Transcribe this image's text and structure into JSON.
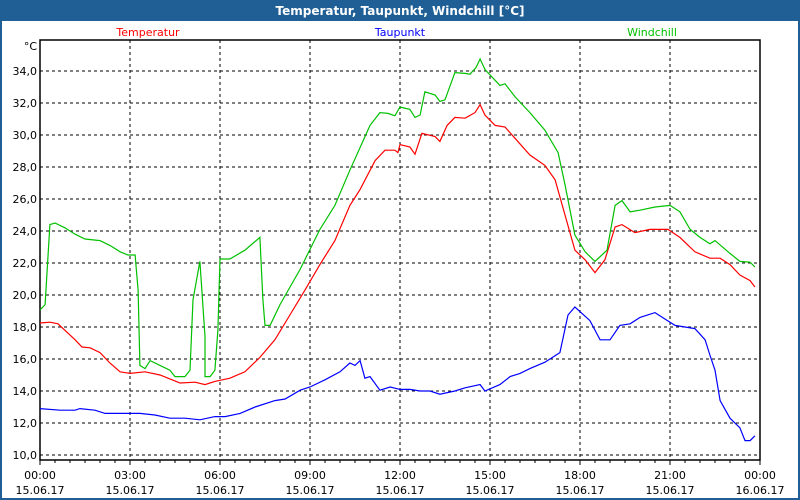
{
  "window": {
    "title": "Temperatur, Taupunkt, Windchill [°C]"
  },
  "chart_data": {
    "type": "line",
    "title": "Temperatur, Taupunkt, Windchill [°C]",
    "ylabel": "°C",
    "xlabel": "",
    "ylim": [
      9.7,
      36
    ],
    "xlim_hours": [
      0,
      24
    ],
    "grid": true,
    "y_ticks": [
      "10,0",
      "12,0",
      "14,0",
      "16,0",
      "18,0",
      "20,0",
      "22,0",
      "24,0",
      "26,0",
      "28,0",
      "30,0",
      "32,0",
      "34,0"
    ],
    "x_ticks": [
      {
        "time": "00:00",
        "date": "15.06.17"
      },
      {
        "time": "03:00",
        "date": "15.06.17"
      },
      {
        "time": "06:00",
        "date": "15.06.17"
      },
      {
        "time": "09:00",
        "date": "15.06.17"
      },
      {
        "time": "12:00",
        "date": "15.06.17"
      },
      {
        "time": "15:00",
        "date": "15.06.17"
      },
      {
        "time": "18:00",
        "date": "15.06.17"
      },
      {
        "time": "21:00",
        "date": "15.06.17"
      },
      {
        "time": "00:00",
        "date": "16.06.17"
      }
    ],
    "series": [
      {
        "name": "Temperatur",
        "color": "#ff0000",
        "legend": "top-left",
        "points": [
          [
            0,
            18.25
          ],
          [
            0.33,
            18.3
          ],
          [
            0.6,
            18.2
          ],
          [
            1.17,
            17.2
          ],
          [
            1.4,
            16.75
          ],
          [
            1.67,
            16.7
          ],
          [
            2,
            16.4
          ],
          [
            2.33,
            15.75
          ],
          [
            2.67,
            15.2
          ],
          [
            3,
            15.1
          ],
          [
            3.5,
            15.2
          ],
          [
            4,
            15.0
          ],
          [
            4.67,
            14.5
          ],
          [
            5.17,
            14.55
          ],
          [
            5.5,
            14.4
          ],
          [
            5.83,
            14.6
          ],
          [
            6.33,
            14.8
          ],
          [
            6.83,
            15.2
          ],
          [
            7.33,
            16.1
          ],
          [
            7.83,
            17.2
          ],
          [
            8.33,
            18.75
          ],
          [
            8.83,
            20.3
          ],
          [
            9.33,
            21.9
          ],
          [
            9.83,
            23.4
          ],
          [
            10.33,
            25.6
          ],
          [
            10.67,
            26.6
          ],
          [
            11.17,
            28.4
          ],
          [
            11.5,
            29.05
          ],
          [
            11.83,
            29.05
          ],
          [
            11.93,
            28.9
          ],
          [
            12,
            29.4
          ],
          [
            12.33,
            29.25
          ],
          [
            12.5,
            28.8
          ],
          [
            12.73,
            30.1
          ],
          [
            13.17,
            29.9
          ],
          [
            13.33,
            29.6
          ],
          [
            13.57,
            30.6
          ],
          [
            13.83,
            31.1
          ],
          [
            14.17,
            31.05
          ],
          [
            14.5,
            31.4
          ],
          [
            14.67,
            31.9
          ],
          [
            14.83,
            31.25
          ],
          [
            15.17,
            30.6
          ],
          [
            15.5,
            30.5
          ],
          [
            15.83,
            29.8
          ],
          [
            16.33,
            28.75
          ],
          [
            16.83,
            28.1
          ],
          [
            17.17,
            27.2
          ],
          [
            17.5,
            25.0
          ],
          [
            17.83,
            22.8
          ],
          [
            18.17,
            22.2
          ],
          [
            18.5,
            21.4
          ],
          [
            18.83,
            22.2
          ],
          [
            19.17,
            24.25
          ],
          [
            19.4,
            24.4
          ],
          [
            19.83,
            23.9
          ],
          [
            20.33,
            24.1
          ],
          [
            20.93,
            24.1
          ],
          [
            21.33,
            23.6
          ],
          [
            21.83,
            22.7
          ],
          [
            22.33,
            22.3
          ],
          [
            22.67,
            22.3
          ],
          [
            23,
            21.9
          ],
          [
            23.33,
            21.25
          ],
          [
            23.67,
            20.9
          ],
          [
            23.83,
            20.5
          ]
        ]
      },
      {
        "name": "Taupunkt",
        "color": "#0000ff",
        "legend": "top-center",
        "points": [
          [
            0,
            12.9
          ],
          [
            0.67,
            12.8
          ],
          [
            1.17,
            12.8
          ],
          [
            1.33,
            12.9
          ],
          [
            1.83,
            12.8
          ],
          [
            2.17,
            12.6
          ],
          [
            2.67,
            12.6
          ],
          [
            3.33,
            12.6
          ],
          [
            3.83,
            12.5
          ],
          [
            4.33,
            12.3
          ],
          [
            4.83,
            12.3
          ],
          [
            5.33,
            12.2
          ],
          [
            5.83,
            12.4
          ],
          [
            6.17,
            12.4
          ],
          [
            6.67,
            12.6
          ],
          [
            7.17,
            13.0
          ],
          [
            7.83,
            13.4
          ],
          [
            8.17,
            13.5
          ],
          [
            8.67,
            14.05
          ],
          [
            9,
            14.25
          ],
          [
            9.5,
            14.7
          ],
          [
            10,
            15.2
          ],
          [
            10.33,
            15.75
          ],
          [
            10.5,
            15.6
          ],
          [
            10.67,
            15.9
          ],
          [
            10.83,
            14.8
          ],
          [
            11,
            14.9
          ],
          [
            11.33,
            14.05
          ],
          [
            11.67,
            14.25
          ],
          [
            12,
            14.1
          ],
          [
            12.33,
            14.1
          ],
          [
            12.67,
            14.0
          ],
          [
            13,
            14.0
          ],
          [
            13.33,
            13.8
          ],
          [
            13.83,
            14.0
          ],
          [
            14.17,
            14.2
          ],
          [
            14.67,
            14.4
          ],
          [
            14.83,
            14.0
          ],
          [
            15.33,
            14.4
          ],
          [
            15.67,
            14.9
          ],
          [
            16,
            15.1
          ],
          [
            16.33,
            15.4
          ],
          [
            16.83,
            15.8
          ],
          [
            17.33,
            16.4
          ],
          [
            17.6,
            18.75
          ],
          [
            17.83,
            19.25
          ],
          [
            18.33,
            18.4
          ],
          [
            18.67,
            17.2
          ],
          [
            19,
            17.2
          ],
          [
            19.33,
            18.1
          ],
          [
            19.67,
            18.2
          ],
          [
            20,
            18.6
          ],
          [
            20.5,
            18.9
          ],
          [
            20.83,
            18.5
          ],
          [
            21.17,
            18.1
          ],
          [
            21.5,
            18.0
          ],
          [
            21.83,
            17.9
          ],
          [
            22.17,
            17.2
          ],
          [
            22.33,
            16.25
          ],
          [
            22.5,
            15.3
          ],
          [
            22.67,
            13.4
          ],
          [
            23,
            12.3
          ],
          [
            23.33,
            11.7
          ],
          [
            23.5,
            10.9
          ],
          [
            23.67,
            10.9
          ],
          [
            23.83,
            11.2
          ]
        ]
      },
      {
        "name": "Windchill",
        "color": "#00c000",
        "legend": "top-right",
        "points": [
          [
            0,
            19.06
          ],
          [
            0.17,
            19.4
          ],
          [
            0.33,
            24.4
          ],
          [
            0.5,
            24.5
          ],
          [
            0.83,
            24.2
          ],
          [
            1.17,
            23.8
          ],
          [
            1.5,
            23.5
          ],
          [
            2,
            23.4
          ],
          [
            2.33,
            23.1
          ],
          [
            2.67,
            22.7
          ],
          [
            2.93,
            22.5
          ],
          [
            3.17,
            22.5
          ],
          [
            3.27,
            20.3
          ],
          [
            3.33,
            15.6
          ],
          [
            3.5,
            15.4
          ],
          [
            3.67,
            15.9
          ],
          [
            4,
            15.6
          ],
          [
            4.33,
            15.3
          ],
          [
            4.5,
            14.9
          ],
          [
            4.83,
            14.9
          ],
          [
            5,
            15.3
          ],
          [
            5.1,
            19.7
          ],
          [
            5.33,
            22.1
          ],
          [
            5.5,
            17.4
          ],
          [
            5.5,
            14.9
          ],
          [
            5.67,
            14.9
          ],
          [
            5.83,
            15.3
          ],
          [
            5.93,
            17.8
          ],
          [
            6,
            22.25
          ],
          [
            6.33,
            22.25
          ],
          [
            6.83,
            22.8
          ],
          [
            7.33,
            23.6
          ],
          [
            7.43,
            19.7
          ],
          [
            7.5,
            18.1
          ],
          [
            7.67,
            18.1
          ],
          [
            8,
            19.4
          ],
          [
            8.67,
            21.6
          ],
          [
            9.33,
            24.1
          ],
          [
            9.83,
            25.6
          ],
          [
            10.33,
            27.8
          ],
          [
            11,
            30.6
          ],
          [
            11.33,
            31.4
          ],
          [
            11.6,
            31.35
          ],
          [
            11.83,
            31.2
          ],
          [
            12,
            31.75
          ],
          [
            12.33,
            31.6
          ],
          [
            12.5,
            31.1
          ],
          [
            12.67,
            31.25
          ],
          [
            12.83,
            32.7
          ],
          [
            13.17,
            32.5
          ],
          [
            13.33,
            32.1
          ],
          [
            13.5,
            32.2
          ],
          [
            13.83,
            33.9
          ],
          [
            14.17,
            33.85
          ],
          [
            14.33,
            33.8
          ],
          [
            14.53,
            34.2
          ],
          [
            14.67,
            34.75
          ],
          [
            14.83,
            34.1
          ],
          [
            15.33,
            33.1
          ],
          [
            15.5,
            33.2
          ],
          [
            15.83,
            32.4
          ],
          [
            16.33,
            31.4
          ],
          [
            16.83,
            30.3
          ],
          [
            17.27,
            28.9
          ],
          [
            17.5,
            26.9
          ],
          [
            17.83,
            23.75
          ],
          [
            18.17,
            22.7
          ],
          [
            18.5,
            22.1
          ],
          [
            18.9,
            22.8
          ],
          [
            19.17,
            25.6
          ],
          [
            19.4,
            25.9
          ],
          [
            19.67,
            25.2
          ],
          [
            20,
            25.3
          ],
          [
            20.5,
            25.5
          ],
          [
            21,
            25.6
          ],
          [
            21.33,
            25.2
          ],
          [
            21.67,
            24.1
          ],
          [
            22,
            23.6
          ],
          [
            22.33,
            23.2
          ],
          [
            22.5,
            23.4
          ],
          [
            23,
            22.6
          ],
          [
            23.33,
            22.1
          ],
          [
            23.67,
            22.05
          ],
          [
            23.83,
            21.75
          ]
        ]
      }
    ]
  }
}
